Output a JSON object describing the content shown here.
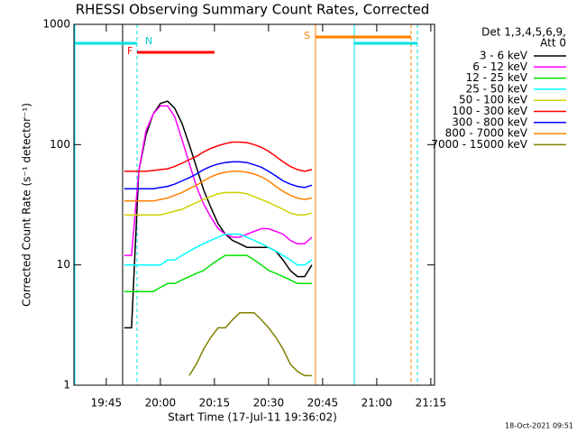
{
  "chart_data": {
    "type": "line",
    "title": "RHESSI Observing Summary Count Rates, Corrected",
    "x_label": "Start Time (17-Jul-11 19:36:02)",
    "y_label": "Corrected Count Rate (s⁻¹ detector⁻¹)",
    "legend_header": [
      "Det 1,3,4,5,6,9,",
      "Att 0"
    ],
    "footer": "18-Oct-2021 09:51",
    "log_y": true,
    "legend": "outside-right",
    "annotations": [
      "N",
      "F",
      "S"
    ],
    "xlim": [
      1176.0333,
      1276.0333
    ],
    "xticks": [
      {
        "value": 1185,
        "label": "19:45"
      },
      {
        "value": 1200,
        "label": "20:00"
      },
      {
        "value": 1215,
        "label": "20:15"
      },
      {
        "value": 1230,
        "label": "20:30"
      },
      {
        "value": 1245,
        "label": "20:45"
      },
      {
        "value": 1260,
        "label": "21:00"
      },
      {
        "value": 1275,
        "label": "21:15"
      }
    ],
    "ylim": [
      1,
      1000
    ],
    "yticks": [
      1,
      10,
      100,
      1000
    ],
    "x": [
      1190,
      1192,
      1194,
      1196,
      1198,
      1200,
      1202,
      1204,
      1206,
      1208,
      1210,
      1212,
      1214,
      1216,
      1218,
      1220,
      1222,
      1224,
      1226,
      1228,
      1230,
      1232,
      1234,
      1236,
      1238,
      1240,
      1242
    ],
    "series": [
      {
        "name": "3 - 6 keV",
        "color": "#000000",
        "values": [
          3,
          3,
          60,
          120,
          180,
          220,
          230,
          200,
          150,
          100,
          65,
          42,
          30,
          22,
          18,
          16,
          15,
          14,
          14,
          14,
          14,
          13,
          11,
          9,
          8,
          8,
          10
        ]
      },
      {
        "name": "6 - 12 keV",
        "color": "#ff00ff",
        "values": [
          12,
          12,
          60,
          130,
          180,
          210,
          210,
          170,
          110,
          70,
          45,
          32,
          25,
          20,
          18,
          17,
          17,
          18,
          19,
          20,
          20,
          19,
          18,
          16,
          15,
          15,
          17
        ]
      },
      {
        "name": "12 - 25 keV",
        "color": "#00e000",
        "values": [
          6,
          6,
          6,
          6,
          6,
          6.5,
          7,
          7,
          7.5,
          8,
          8.5,
          9,
          10,
          11,
          12,
          12,
          12,
          12,
          11,
          10,
          9,
          8.5,
          8,
          7.5,
          7,
          7,
          7
        ]
      },
      {
        "name": "25 - 50 keV",
        "color": "#00ffff",
        "values": [
          10,
          10,
          10,
          10,
          10,
          10,
          11,
          11,
          12,
          13,
          14,
          15,
          16,
          17,
          18,
          18,
          18,
          17,
          16,
          15,
          14,
          13,
          12,
          11,
          10,
          10,
          11
        ]
      },
      {
        "name": "50 - 100 keV",
        "color": "#d0d000",
        "values": [
          26,
          26,
          26,
          26,
          26,
          26,
          27,
          28,
          29,
          31,
          33,
          35,
          37,
          39,
          40,
          40,
          40,
          39,
          37,
          35,
          33,
          31,
          29,
          27,
          26,
          26,
          27
        ]
      },
      {
        "name": "100 - 300 keV",
        "color": "#ff0000",
        "values": [
          60,
          60,
          60,
          60,
          61,
          62,
          63,
          66,
          70,
          75,
          80,
          87,
          93,
          98,
          102,
          105,
          105,
          104,
          100,
          95,
          88,
          80,
          72,
          66,
          62,
          60,
          62
        ]
      },
      {
        "name": "300 - 800 keV",
        "color": "#0000ff",
        "values": [
          43,
          43,
          43,
          43,
          43,
          44,
          45,
          47,
          50,
          53,
          57,
          62,
          66,
          69,
          71,
          72,
          72,
          71,
          68,
          65,
          60,
          55,
          50,
          47,
          45,
          44,
          46
        ]
      },
      {
        "name": "800 - 7000 keV",
        "color": "#ff8000",
        "values": [
          34,
          34,
          34,
          34,
          34,
          35,
          36,
          38,
          40,
          43,
          46,
          50,
          54,
          57,
          59,
          60,
          60,
          59,
          57,
          54,
          50,
          45,
          41,
          38,
          36,
          35,
          36
        ]
      },
      {
        "name": "7000 - 15000 keV",
        "color": "#808000",
        "values": [
          null,
          null,
          null,
          null,
          null,
          null,
          null,
          null,
          null,
          1.2,
          1.5,
          2,
          2.5,
          3,
          3,
          3.5,
          4,
          4,
          4,
          3.5,
          3,
          2.5,
          2,
          1.5,
          1.3,
          1.2,
          1.2
        ]
      }
    ]
  }
}
